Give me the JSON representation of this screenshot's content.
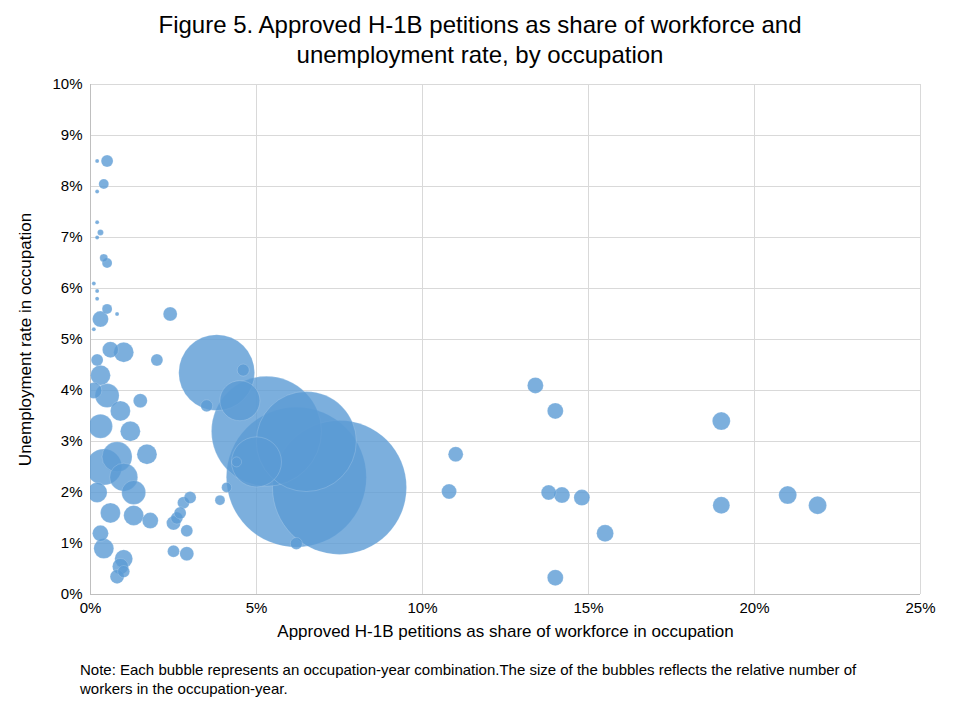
{
  "chart_data": {
    "type": "scatter",
    "title": "Figure 5. Approved H-1B petitions as share of workforce and unemployment rate, by occupation",
    "x_label": "Approved H-1B petitions as share of workforce in occupation",
    "y_label": "Unemployment rate in occupation",
    "note": "Note: Each bubble represents an occupation-year combination.The size of the bubbles reflects the relative number of workers in the occupation-year.",
    "color": "#5b9bd5",
    "grid": true,
    "xlim": [
      0,
      25
    ],
    "ylim": [
      0,
      10
    ],
    "xticks": [
      {
        "value": 0,
        "label": "0%"
      },
      {
        "value": 5,
        "label": "5%"
      },
      {
        "value": 10,
        "label": "10%"
      },
      {
        "value": 15,
        "label": "15%"
      },
      {
        "value": 20,
        "label": "20%"
      },
      {
        "value": 25,
        "label": "25%"
      }
    ],
    "yticks": [
      {
        "value": 0,
        "label": "0%"
      },
      {
        "value": 1,
        "label": "1%"
      },
      {
        "value": 2,
        "label": "2%"
      },
      {
        "value": 3,
        "label": "3%"
      },
      {
        "value": 4,
        "label": "4%"
      },
      {
        "value": 5,
        "label": "5%"
      },
      {
        "value": 6,
        "label": "6%"
      },
      {
        "value": 7,
        "label": "7%"
      },
      {
        "value": 8,
        "label": "8%"
      },
      {
        "value": 9,
        "label": "9%"
      },
      {
        "value": 10,
        "label": "10%"
      }
    ],
    "x": [
      0.2,
      0.5,
      0.4,
      0.2,
      0.2,
      0.3,
      0.2,
      0.4,
      0.5,
      0.1,
      0.2,
      0.2,
      0.5,
      0.8,
      0.3,
      0.1,
      2.4,
      2.0,
      1.0,
      0.6,
      0.2,
      0.3,
      0.1,
      0.5,
      1.5,
      0.9,
      0.3,
      1.2,
      1.7,
      0.8,
      0.4,
      1.0,
      1.3,
      0.2,
      1.3,
      1.8,
      0.6,
      0.3,
      0.4,
      1.0,
      0.9,
      0.8,
      1.0,
      2.8,
      3.0,
      2.6,
      2.5,
      2.9,
      2.5,
      2.9,
      3.9,
      4.1,
      3.5,
      4.6,
      4.4,
      6.2,
      2.7,
      13.4,
      14.0,
      11.0,
      10.8,
      13.8,
      14.2,
      14.8,
      15.5,
      14.0,
      19.0,
      19.0,
      21.0,
      21.9,
      4.5,
      5.0,
      3.8,
      6.5,
      5.3,
      7.5,
      6.2
    ],
    "values": [
      8.5,
      8.5,
      8.05,
      7.9,
      7.3,
      7.1,
      7.0,
      6.6,
      6.5,
      6.1,
      5.95,
      5.8,
      5.6,
      5.5,
      5.4,
      5.2,
      5.5,
      4.6,
      4.75,
      4.8,
      4.6,
      4.3,
      4.0,
      3.9,
      3.8,
      3.6,
      3.3,
      3.2,
      2.75,
      2.7,
      2.5,
      2.3,
      2.0,
      2.0,
      1.55,
      1.45,
      1.6,
      1.2,
      0.9,
      0.7,
      0.55,
      0.35,
      0.45,
      1.8,
      1.9,
      1.5,
      1.4,
      1.25,
      0.85,
      0.8,
      1.85,
      2.1,
      3.7,
      4.4,
      2.6,
      1.0,
      1.6,
      4.1,
      3.6,
      2.75,
      2.02,
      2.0,
      1.95,
      1.9,
      1.2,
      0.33,
      3.4,
      1.75,
      1.95,
      1.75,
      3.8,
      2.6,
      4.35,
      3.0,
      3.2,
      2.1,
      2.3
    ],
    "sizes": [
      0.4,
      3.6,
      2.5,
      0.4,
      0.4,
      0.9,
      0.4,
      1.6,
      2.5,
      0.4,
      0.4,
      0.4,
      2.5,
      0.4,
      6.4,
      0.4,
      4.9,
      3.6,
      10,
      6.4,
      3.6,
      10,
      6.4,
      14.4,
      4.9,
      10,
      14.4,
      10,
      10,
      22.5,
      32.4,
      19.6,
      14.4,
      10,
      10,
      6.4,
      10,
      6.4,
      10,
      8.1,
      6.4,
      4.9,
      3.6,
      3.6,
      3.6,
      3.6,
      4.9,
      3.6,
      3.6,
      4.9,
      2.5,
      2.5,
      3.6,
      3.6,
      2.5,
      3.6,
      3.6,
      6.4,
      6.4,
      5.6,
      5.6,
      5.6,
      6.4,
      6.4,
      7.2,
      6.4,
      8.1,
      7.2,
      8.1,
      8.1,
      40,
      62.5,
      144,
      250,
      302.5,
      448.9,
      490
    ]
  }
}
